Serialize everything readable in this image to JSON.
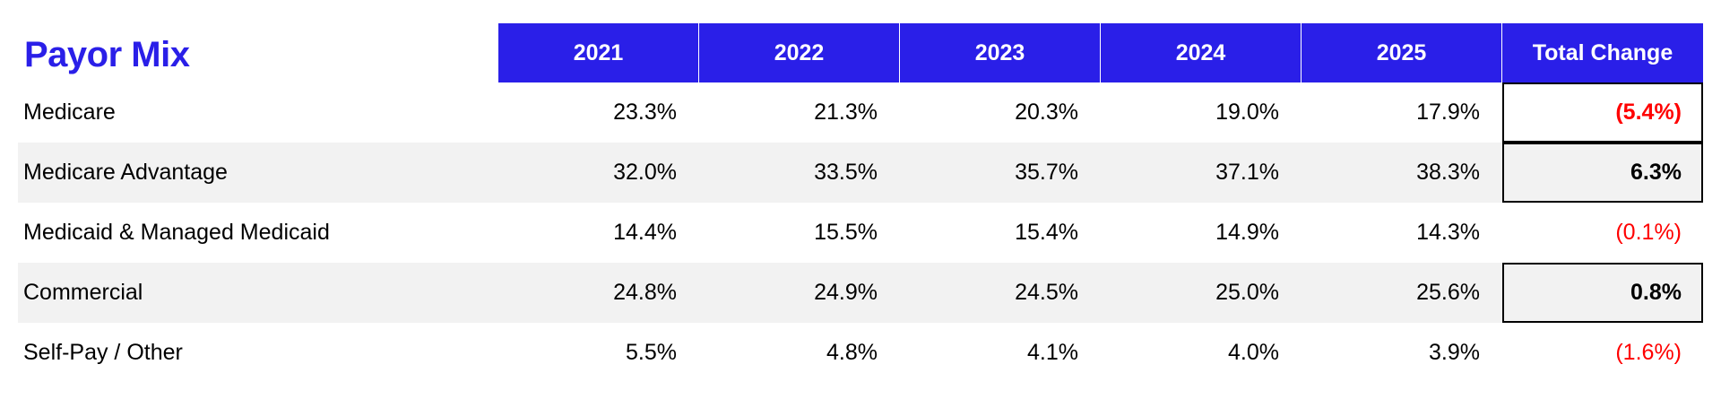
{
  "title": "Payor Mix",
  "headers": [
    "2021",
    "2022",
    "2023",
    "2024",
    "2025",
    "Total Change"
  ],
  "chart_data": {
    "type": "table",
    "title": "Payor Mix",
    "columns": [
      "2021",
      "2022",
      "2023",
      "2024",
      "2025",
      "Total Change"
    ],
    "rows": [
      {
        "label": "Medicare",
        "values": [
          "23.3%",
          "21.3%",
          "20.3%",
          "19.0%",
          "17.9%"
        ],
        "change": "(5.4%)"
      },
      {
        "label": "Medicare Advantage",
        "values": [
          "32.0%",
          "33.5%",
          "35.7%",
          "37.1%",
          "38.3%"
        ],
        "change": "6.3%"
      },
      {
        "label": "Medicaid & Managed Medicaid",
        "values": [
          "14.4%",
          "15.5%",
          "15.4%",
          "14.9%",
          "14.3%"
        ],
        "change": "(0.1%)"
      },
      {
        "label": "Commercial",
        "values": [
          "24.8%",
          "24.9%",
          "24.5%",
          "25.0%",
          "25.6%"
        ],
        "change": "0.8%"
      },
      {
        "label": "Self-Pay / Other",
        "values": [
          "5.5%",
          "4.8%",
          "4.1%",
          "4.0%",
          "3.9%"
        ],
        "change": "(1.6%)"
      }
    ]
  },
  "colors": {
    "header_bg": "#2a1fe8",
    "title": "#2a1fe8",
    "negative": "#ff0000",
    "stripe": "#f2f2f2"
  }
}
